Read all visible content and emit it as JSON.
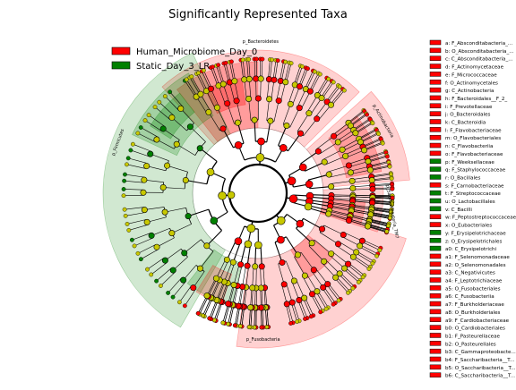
{
  "title": "Significantly Represented Taxa",
  "colors": {
    "red": "#ff0000",
    "green": "#008000",
    "red_sector": "#ff0000",
    "green_sector": "#008000",
    "node_nonsig": "#c8c800",
    "edge": "#000000"
  },
  "legend": [
    {
      "label": "Human_Microbiome_Day_0",
      "color": "#ff0000"
    },
    {
      "label": "Static_Day_3_LR",
      "color": "#008000"
    }
  ],
  "sector_labels": [
    "p_Bacteroidetes",
    "p_Actinobacteria",
    "p_Firmicutes",
    "p_Fusobacteria",
    "p_Saccharibacteria_TM7"
  ],
  "taxa_key": [
    {
      "text": "a: F_Absconditabacteria_...",
      "color": "#ff0000"
    },
    {
      "text": "b: O_Absconditabacteria_...",
      "color": "#ff0000"
    },
    {
      "text": "c: C_Absconditabacteria_...",
      "color": "#ff0000"
    },
    {
      "text": "d: F_Actinomycetaceae",
      "color": "#ff0000"
    },
    {
      "text": "e: F_Micrococcaceae",
      "color": "#ff0000"
    },
    {
      "text": "f: O_Actinomycetales",
      "color": "#ff0000"
    },
    {
      "text": "g: C_Actinobacteria",
      "color": "#ff0000"
    },
    {
      "text": "h: F_Bacteroidales__F_2_",
      "color": "#ff0000"
    },
    {
      "text": "i: F_Prevotellaceae",
      "color": "#ff0000"
    },
    {
      "text": "j: O_Bacteroidales",
      "color": "#ff0000"
    },
    {
      "text": "k: C_Bacteroidia",
      "color": "#ff0000"
    },
    {
      "text": "l: F_Flavobacteriaceae",
      "color": "#ff0000"
    },
    {
      "text": "m: O_Flavobacteriales",
      "color": "#ff0000"
    },
    {
      "text": "n: C_Flavobacteriia",
      "color": "#ff0000"
    },
    {
      "text": "o: F_Flavobacteriaceae",
      "color": "#ff0000"
    },
    {
      "text": "p: F_Weeksellaceae",
      "color": "#008000"
    },
    {
      "text": "q: F_Staphylococcaceae",
      "color": "#008000"
    },
    {
      "text": "r: O_Bacillales",
      "color": "#008000"
    },
    {
      "text": "s: F_Carnobacteriaceae",
      "color": "#ff0000"
    },
    {
      "text": "t: F_Streptococcaceae",
      "color": "#008000"
    },
    {
      "text": "u: O_Lactobacillales",
      "color": "#008000"
    },
    {
      "text": "v: C_Bacilli",
      "color": "#008000"
    },
    {
      "text": "w: F_Peptostreptococcaceae",
      "color": "#ff0000"
    },
    {
      "text": "x: O_Eubacteriales",
      "color": "#ff0000"
    },
    {
      "text": "y: F_Erysipelotrichaceae",
      "color": "#008000"
    },
    {
      "text": "z: O_Erysipelotrichales",
      "color": "#008000"
    },
    {
      "text": "a0: C_Erysipelotrichi",
      "color": "#008000"
    },
    {
      "text": "a1: F_Selenomonadaceae",
      "color": "#ff0000"
    },
    {
      "text": "a2: O_Selenomonadales",
      "color": "#ff0000"
    },
    {
      "text": "a3: C_Negativicutes",
      "color": "#ff0000"
    },
    {
      "text": "a4: F_Leptotrichiaceae",
      "color": "#ff0000"
    },
    {
      "text": "a5: O_Fusobacteriales",
      "color": "#ff0000"
    },
    {
      "text": "a6: C_Fusobacteriia",
      "color": "#ff0000"
    },
    {
      "text": "a7: F_Burkholderiaceae",
      "color": "#ff0000"
    },
    {
      "text": "a8: O_Burkholderiales",
      "color": "#ff0000"
    },
    {
      "text": "a9: F_Cardiobacteriaceae",
      "color": "#ff0000"
    },
    {
      "text": "b0: O_Cardiobacteriales",
      "color": "#ff0000"
    },
    {
      "text": "b1: F_Pasteurellaceae",
      "color": "#ff0000"
    },
    {
      "text": "b2: O_Pasteurellales",
      "color": "#ff0000"
    },
    {
      "text": "b3: C_Gammaproteobacte...",
      "color": "#ff0000"
    },
    {
      "text": "b4: F_Saccharibacteria__T...",
      "color": "#ff0000"
    },
    {
      "text": "b5: O_Saccharibacteria__T...",
      "color": "#ff0000"
    },
    {
      "text": "b6: C_Saccharibacteria__T...",
      "color": "#ff0000"
    }
  ]
}
